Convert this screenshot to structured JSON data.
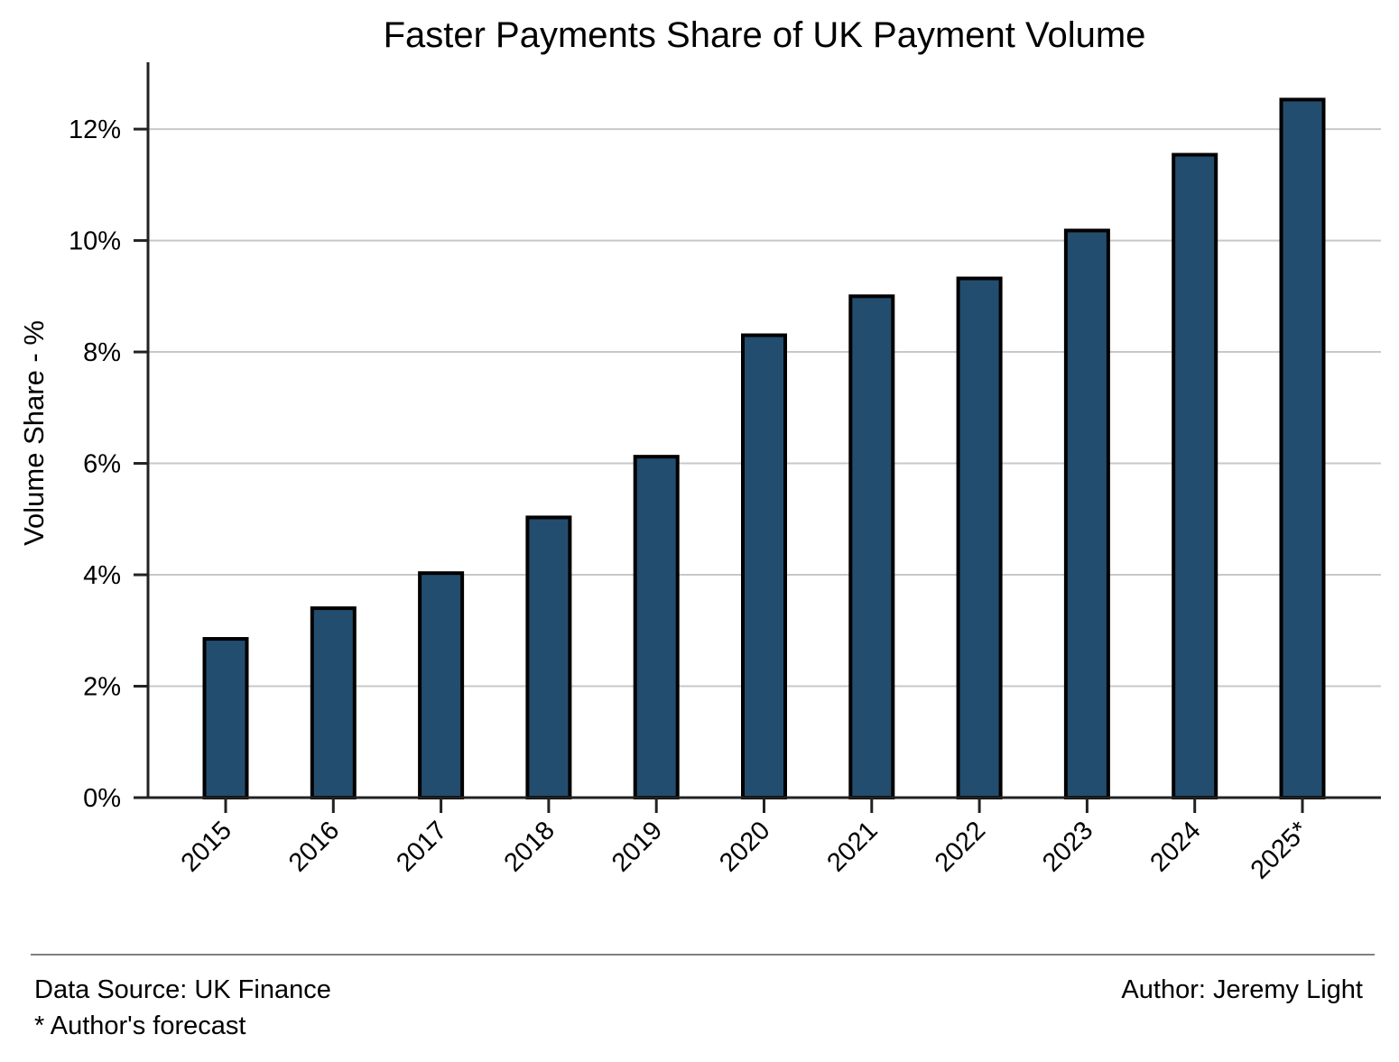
{
  "chart_data": {
    "type": "bar",
    "title": "Faster Payments Share of UK Payment Volume",
    "xlabel": "",
    "ylabel": "Volume Share - %",
    "categories": [
      "2015",
      "2016",
      "2017",
      "2018",
      "2019",
      "2020",
      "2021",
      "2022",
      "2023",
      "2024",
      "2025*"
    ],
    "values": [
      2.85,
      3.4,
      4.03,
      5.03,
      6.12,
      8.3,
      9.0,
      9.32,
      10.18,
      11.54,
      12.53
    ],
    "ylim": [
      0,
      13.2
    ],
    "yticks": [
      0,
      2,
      4,
      6,
      8,
      10,
      12
    ],
    "ytick_labels": [
      "0%",
      "2%",
      "4%",
      "6%",
      "8%",
      "10%",
      "12%"
    ],
    "grid": "horizontal",
    "colors": {
      "bar_fill": "#234d6e",
      "bar_edge": "#000000",
      "grid": "#c8c8c8",
      "axis": "#222222"
    }
  },
  "footer": {
    "source": "Data Source: UK Finance",
    "note": "* Author's forecast",
    "author": "Author: Jeremy Light"
  }
}
